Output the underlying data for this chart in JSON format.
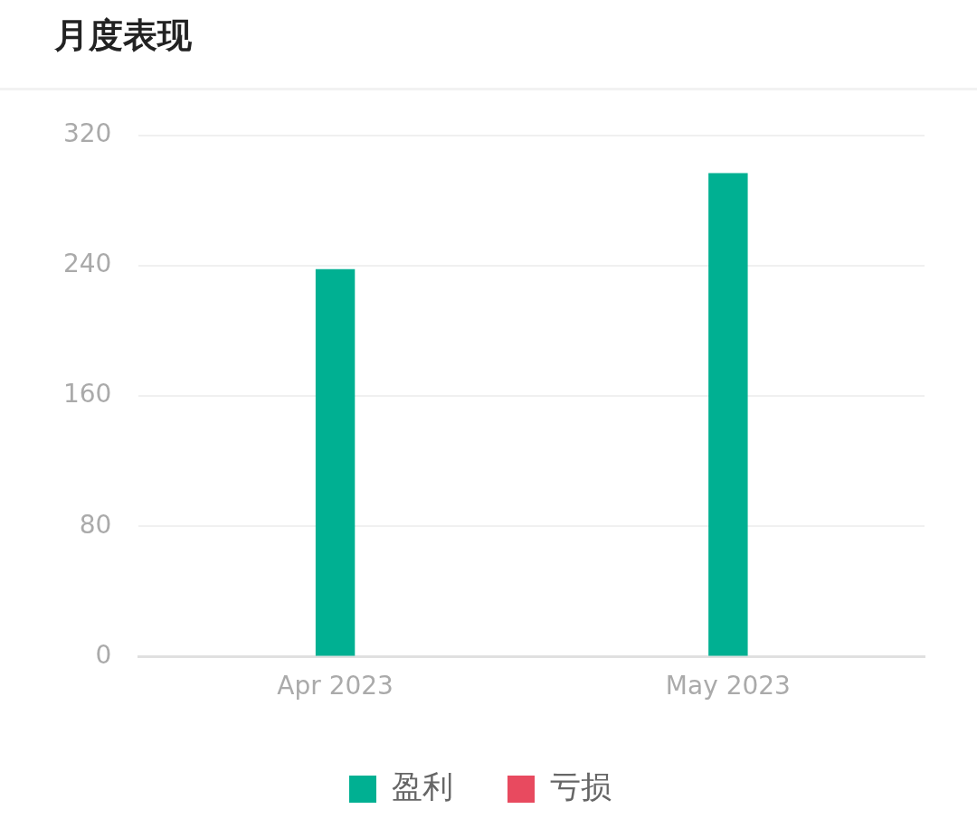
{
  "chart_data": {
    "type": "bar",
    "title": "月度表现",
    "categories": [
      "Apr 2023",
      "May 2023"
    ],
    "series": [
      {
        "name": "盈利",
        "color": "#00b092",
        "values": [
          238,
          297
        ]
      },
      {
        "name": "亏损",
        "color": "#e84a5f",
        "values": [
          null,
          null
        ]
      }
    ],
    "ylim": [
      0,
      320
    ],
    "yticks": [
      0,
      80,
      160,
      240,
      320
    ],
    "grid": "y",
    "legend": "bottom"
  }
}
